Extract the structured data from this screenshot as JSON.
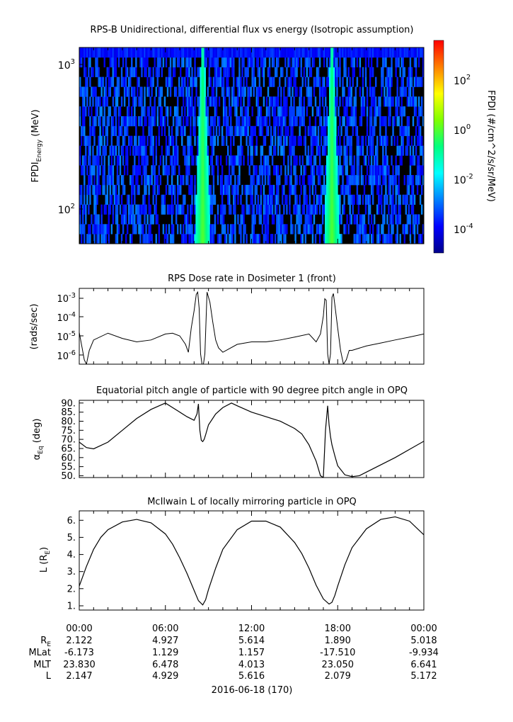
{
  "panel1": {
    "title": "RPS-B  Unidirectional, differential flux vs energy (Isotropic assumption)",
    "ylabel_main": "FPDI",
    "ylabel_sub": "Energy",
    "ylabel_unit": " (MeV)",
    "yticks": [
      {
        "label_base": "10",
        "label_exp": "3"
      },
      {
        "label_base": "10",
        "label_exp": "2"
      }
    ],
    "colorbar": {
      "label": "FPDI (#/cm^2/s/sr/MeV)",
      "ticks": [
        {
          "base": "10",
          "exp": "2"
        },
        {
          "base": "10",
          "exp": "0"
        },
        {
          "base": "10",
          "exp": "-2"
        },
        {
          "base": "10",
          "exp": "-4"
        }
      ],
      "colors": [
        "#00008b",
        "#0000ff",
        "#0080ff",
        "#00ffff",
        "#00ff80",
        "#80ff00",
        "#ffff00",
        "#ff8000",
        "#ff0000"
      ]
    }
  },
  "panel2": {
    "title": "RPS  Dose rate in Dosimeter 1 (front)",
    "ylabel": "(rads/sec)",
    "yticks": [
      {
        "base": "10",
        "exp": "-3"
      },
      {
        "base": "10",
        "exp": "-4"
      },
      {
        "base": "10",
        "exp": "-5"
      },
      {
        "base": "10",
        "exp": "-6"
      }
    ]
  },
  "panel3": {
    "title": "Equatorial pitch angle of particle with 90 degree pitch angle in OPQ",
    "ylabel_main": "α",
    "ylabel_sub": "Eq",
    "ylabel_unit": " (deg)",
    "yticks": [
      "90.",
      "85.",
      "80.",
      "75.",
      "70.",
      "65.",
      "60.",
      "55.",
      "50."
    ]
  },
  "panel4": {
    "title": "McIlwain L of locally mirroring particle in OPQ",
    "ylabel_main": "L (R",
    "ylabel_sub": "E",
    "ylabel_end": ")",
    "yticks": [
      "6.",
      "5.",
      "4.",
      "3.",
      "2.",
      "1."
    ]
  },
  "footer": {
    "time_labels": [
      "00:00",
      "06:00",
      "12:00",
      "18:00",
      "00:00"
    ],
    "rows": [
      {
        "label_main": "R",
        "label_sub": "E",
        "values": [
          "2.122",
          "4.927",
          "5.614",
          "1.890",
          "5.018"
        ]
      },
      {
        "label_main": "MLat",
        "label_sub": "",
        "values": [
          "-6.173",
          "1.129",
          "1.157",
          "-17.510",
          "-9.934"
        ]
      },
      {
        "label_main": "MLT",
        "label_sub": "",
        "values": [
          "23.830",
          "6.478",
          "4.013",
          "23.050",
          "6.641"
        ]
      },
      {
        "label_main": "L",
        "label_sub": "",
        "values": [
          "2.147",
          "4.929",
          "5.616",
          "2.079",
          "5.172"
        ]
      }
    ],
    "date": "2016-06-18 (170)"
  },
  "chart_data": [
    {
      "type": "heatmap",
      "title": "RPS-B  Unidirectional, differential flux vs energy (Isotropic assumption)",
      "x_unit": "UT hours",
      "xlim": [
        0,
        24
      ],
      "ylabel": "FPDI Energy (MeV)",
      "y_scale": "log",
      "ylim": [
        55,
        1400
      ],
      "z_label": "FPDI (#/cm^2/s/sr/MeV)",
      "z_scale": "log",
      "zlim": [
        1e-05,
        3000.0
      ],
      "features": [
        {
          "description": "radiation belt pass",
          "center_hour": 8.6,
          "peak_flux": 1
        },
        {
          "description": "radiation belt pass",
          "center_hour": 17.6,
          "peak_flux": 1
        }
      ],
      "background_flux": 0.001
    },
    {
      "type": "line",
      "title": "RPS  Dose rate in Dosimeter 1 (front)",
      "ylabel": "(rads/sec)",
      "y_scale": "log",
      "xlim": [
        0,
        24
      ],
      "ylim": [
        3e-07,
        0.002
      ],
      "x": [
        0,
        0.2,
        0.35,
        0.5,
        0.7,
        1,
        2,
        3,
        4,
        5,
        6,
        6.5,
        7,
        7.4,
        7.6,
        7.8,
        8.0,
        8.15,
        8.25,
        8.35,
        8.45,
        8.55,
        8.65,
        8.75,
        8.9,
        9.1,
        9.3,
        9.5,
        9.7,
        10,
        11,
        12,
        13,
        14,
        15,
        16,
        16.5,
        16.8,
        17.0,
        17.1,
        17.2,
        17.3,
        17.4,
        17.5,
        17.6,
        17.7,
        17.8,
        18.0,
        18.2,
        18.4,
        18.6,
        18.8,
        19,
        20,
        21,
        22,
        23,
        24
      ],
      "y": [
        1.2e-05,
        2e-06,
        5e-07,
        3e-07,
        1.5e-06,
        5e-06,
        1.1e-05,
        6e-06,
        4e-06,
        5e-06,
        1e-05,
        1.1e-05,
        8e-06,
        3e-06,
        1.2e-06,
        2e-05,
        0.00015,
        0.001,
        0.0013,
        0.0002,
        1e-06,
        3e-07,
        3e-07,
        1e-06,
        0.0013,
        0.0004,
        4e-05,
        5e-06,
        2e-06,
        1.2e-06,
        3e-06,
        4e-06,
        4e-06,
        5e-06,
        7e-06,
        1e-05,
        4e-06,
        1e-05,
        8e-05,
        0.0006,
        0.0005,
        1e-06,
        3e-07,
        1e-06,
        0.0007,
        0.0011,
        0.0003,
        2e-05,
        1.5e-06,
        3e-07,
        5e-07,
        1.5e-06,
        1.5e-06,
        2.5e-06,
        3.5e-06,
        5e-06,
        7e-06,
        1e-05
      ]
    },
    {
      "type": "line",
      "title": "Equatorial pitch angle of particle with 90 degree pitch angle in OPQ",
      "ylabel": "αEq (deg)",
      "xlim": [
        0,
        24
      ],
      "ylim": [
        49,
        91.5
      ],
      "x": [
        0,
        0.5,
        1,
        2,
        3,
        4,
        5,
        6,
        6.5,
        7,
        7.5,
        8,
        8.2,
        8.3,
        8.4,
        8.5,
        8.6,
        8.7,
        8.8,
        9,
        9.5,
        10,
        10.6,
        11,
        12,
        13,
        14,
        15,
        15.5,
        16,
        16.5,
        16.8,
        17.0,
        17.15,
        17.3,
        17.4,
        17.5,
        17.6,
        17.8,
        18,
        18.5,
        19,
        19.5,
        20,
        21,
        22,
        23,
        24
      ],
      "y": [
        68.5,
        65.5,
        64.8,
        68.5,
        75,
        81.5,
        86.5,
        90,
        87.5,
        85,
        82.5,
        80.5,
        84,
        89.5,
        75,
        69.5,
        68.8,
        70,
        72.5,
        78,
        84,
        87.5,
        90,
        88.5,
        85,
        82.5,
        80,
        76,
        73,
        67,
        58,
        50,
        49,
        75,
        88.5,
        78,
        71.5,
        67,
        61,
        55.5,
        50.5,
        49.5,
        50,
        52,
        56,
        60,
        64.5,
        69
      ]
    },
    {
      "type": "line",
      "title": "McIlwain L of locally mirroring particle in OPQ",
      "ylabel": "L (RE)",
      "xlim": [
        0,
        24
      ],
      "ylim": [
        0.75,
        6.55
      ],
      "x": [
        0,
        0.5,
        1,
        1.5,
        2,
        3,
        4,
        5,
        6,
        6.5,
        7,
        7.5,
        8,
        8.3,
        8.6,
        8.8,
        9,
        9.5,
        10,
        11,
        12,
        13,
        14,
        15,
        15.5,
        16,
        16.5,
        17,
        17.4,
        17.6,
        17.8,
        18,
        18.5,
        19,
        20,
        21,
        22,
        23,
        24
      ],
      "y": [
        2.15,
        3.3,
        4.3,
        5.0,
        5.45,
        5.9,
        6.05,
        5.85,
        5.2,
        4.6,
        3.8,
        2.9,
        1.9,
        1.3,
        1.05,
        1.35,
        1.95,
        3.2,
        4.3,
        5.45,
        5.95,
        5.95,
        5.6,
        4.7,
        4.05,
        3.2,
        2.2,
        1.4,
        1.1,
        1.2,
        1.6,
        2.15,
        3.4,
        4.4,
        5.5,
        6.05,
        6.2,
        5.95,
        5.15
      ]
    }
  ]
}
